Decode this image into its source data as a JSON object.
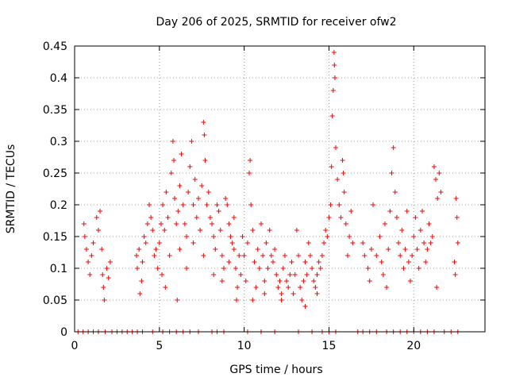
{
  "chart_data": {
    "type": "scatter",
    "title": "Day 206 of 2025, SRMTID for receiver ofw2",
    "xlabel": "GPS time / hours",
    "ylabel": "SRMTID / TECUs",
    "xlim": [
      0,
      24.2
    ],
    "ylim": [
      0,
      0.45
    ],
    "x_ticks": [
      0,
      5,
      10,
      15,
      20
    ],
    "y_ticks": [
      0,
      0.05,
      0.1,
      0.15,
      0.2,
      0.25,
      0.3,
      0.35,
      0.4,
      0.45
    ],
    "x_tick_labels": [
      "0",
      "5",
      "10",
      "15",
      "20"
    ],
    "y_tick_labels": [
      "0",
      "0.05",
      "0.1",
      "0.15",
      "0.2",
      "0.25",
      "0.3",
      "0.35",
      "0.4",
      "0.45"
    ],
    "grid": true,
    "marker": "+",
    "color": "#ff0000",
    "series": [
      {
        "name": "SRMTID",
        "points": [
          [
            0.2,
            0
          ],
          [
            0.5,
            0
          ],
          [
            0.8,
            0
          ],
          [
            1.1,
            0
          ],
          [
            1.4,
            0
          ],
          [
            1.8,
            0
          ],
          [
            2.2,
            0
          ],
          [
            2.5,
            0
          ],
          [
            2.8,
            0
          ],
          [
            3.1,
            0
          ],
          [
            3.4,
            0
          ],
          [
            3.7,
            0
          ],
          [
            4.0,
            0
          ],
          [
            4.6,
            0
          ],
          [
            5.2,
            0
          ],
          [
            5.6,
            0
          ],
          [
            6.0,
            0
          ],
          [
            6.4,
            0
          ],
          [
            6.8,
            0
          ],
          [
            7.3,
            0
          ],
          [
            8.1,
            0
          ],
          [
            8.4,
            0
          ],
          [
            8.8,
            0
          ],
          [
            10.2,
            0
          ],
          [
            11.0,
            0
          ],
          [
            11.8,
            0
          ],
          [
            13.2,
            0
          ],
          [
            14.0,
            0
          ],
          [
            14.6,
            0
          ],
          [
            15.0,
            0
          ],
          [
            15.4,
            0
          ],
          [
            16.7,
            0
          ],
          [
            17.0,
            0
          ],
          [
            17.4,
            0
          ],
          [
            17.8,
            0
          ],
          [
            18.4,
            0
          ],
          [
            18.8,
            0
          ],
          [
            19.2,
            0
          ],
          [
            19.6,
            0
          ],
          [
            20.0,
            0
          ],
          [
            20.4,
            0
          ],
          [
            20.8,
            0
          ],
          [
            21.2,
            0
          ],
          [
            21.8,
            0
          ],
          [
            22.2,
            0
          ],
          [
            22.6,
            0
          ],
          [
            0.55,
            0.17
          ],
          [
            0.6,
            0.15
          ],
          [
            0.7,
            0.13
          ],
          [
            0.8,
            0.11
          ],
          [
            0.9,
            0.09
          ],
          [
            1.0,
            0.12
          ],
          [
            1.1,
            0.14
          ],
          [
            1.3,
            0.18
          ],
          [
            1.4,
            0.16
          ],
          [
            1.5,
            0.19
          ],
          [
            1.6,
            0.13
          ],
          [
            1.65,
            0.09
          ],
          [
            1.7,
            0.07
          ],
          [
            1.75,
            0.05
          ],
          [
            1.9,
            0.1
          ],
          [
            2.0,
            0.085
          ],
          [
            2.1,
            0.11
          ],
          [
            3.65,
            0.12
          ],
          [
            3.7,
            0.1
          ],
          [
            3.8,
            0.13
          ],
          [
            3.85,
            0.06
          ],
          [
            3.95,
            0.08
          ],
          [
            4.0,
            0.11
          ],
          [
            4.1,
            0.15
          ],
          [
            4.2,
            0.14
          ],
          [
            4.3,
            0.17
          ],
          [
            4.4,
            0.2
          ],
          [
            4.5,
            0.18
          ],
          [
            4.6,
            0.16
          ],
          [
            4.7,
            0.12
          ],
          [
            4.8,
            0.13
          ],
          [
            4.9,
            0.1
          ],
          [
            5.0,
            0.14
          ],
          [
            5.1,
            0.17
          ],
          [
            5.15,
            0.09
          ],
          [
            5.2,
            0.2
          ],
          [
            5.3,
            0.16
          ],
          [
            5.35,
            0.07
          ],
          [
            5.4,
            0.22
          ],
          [
            5.5,
            0.18
          ],
          [
            5.6,
            0.12
          ],
          [
            5.7,
            0.25
          ],
          [
            5.8,
            0.3
          ],
          [
            5.85,
            0.27
          ],
          [
            5.9,
            0.21
          ],
          [
            6.0,
            0.17
          ],
          [
            6.05,
            0.05
          ],
          [
            6.1,
            0.19
          ],
          [
            6.2,
            0.23
          ],
          [
            6.3,
            0.28
          ],
          [
            6.4,
            0.2
          ],
          [
            6.5,
            0.17
          ],
          [
            6.6,
            0.15
          ],
          [
            6.7,
            0.22
          ],
          [
            6.8,
            0.26
          ],
          [
            6.9,
            0.3
          ],
          [
            7.0,
            0.2
          ],
          [
            7.1,
            0.24
          ],
          [
            7.2,
            0.18
          ],
          [
            7.3,
            0.21
          ],
          [
            7.4,
            0.16
          ],
          [
            7.5,
            0.23
          ],
          [
            7.6,
            0.33
          ],
          [
            7.65,
            0.31
          ],
          [
            7.7,
            0.27
          ],
          [
            7.8,
            0.2
          ],
          [
            7.9,
            0.22
          ],
          [
            8.0,
            0.18
          ],
          [
            8.1,
            0.17
          ],
          [
            8.2,
            0.15
          ],
          [
            8.3,
            0.13
          ],
          [
            8.4,
            0.2
          ],
          [
            8.5,
            0.19
          ],
          [
            8.6,
            0.16
          ],
          [
            8.7,
            0.12
          ],
          [
            8.8,
            0.1
          ],
          [
            8.9,
            0.21
          ],
          [
            9.0,
            0.2
          ],
          [
            9.1,
            0.17
          ],
          [
            9.2,
            0.15
          ],
          [
            9.3,
            0.14
          ],
          [
            9.4,
            0.13
          ],
          [
            9.5,
            0.1
          ],
          [
            9.6,
            0.07
          ],
          [
            6.2,
            0.13
          ],
          [
            6.6,
            0.1
          ],
          [
            7.0,
            0.14
          ],
          [
            7.6,
            0.12
          ],
          [
            8.2,
            0.09
          ],
          [
            8.7,
            0.08
          ],
          [
            9.1,
            0.11
          ],
          [
            9.4,
            0.18
          ],
          [
            9.55,
            0.05
          ],
          [
            9.7,
            0.12
          ],
          [
            9.8,
            0.09
          ],
          [
            9.9,
            0.15
          ],
          [
            10.0,
            0.12
          ],
          [
            10.1,
            0.08
          ],
          [
            10.2,
            0.14
          ],
          [
            10.3,
            0.25
          ],
          [
            10.35,
            0.27
          ],
          [
            10.4,
            0.2
          ],
          [
            10.5,
            0.16
          ],
          [
            10.6,
            0.11
          ],
          [
            10.7,
            0.07
          ],
          [
            10.8,
            0.13
          ],
          [
            10.9,
            0.1
          ],
          [
            11.0,
            0.17
          ],
          [
            11.1,
            0.12
          ],
          [
            11.2,
            0.08
          ],
          [
            11.3,
            0.14
          ],
          [
            11.4,
            0.1
          ],
          [
            11.5,
            0.16
          ],
          [
            11.6,
            0.12
          ],
          [
            11.7,
            0.11
          ],
          [
            11.8,
            0.13
          ],
          [
            11.9,
            0.09
          ],
          [
            12.0,
            0.07
          ],
          [
            12.1,
            0.08
          ],
          [
            12.2,
            0.06
          ],
          [
            12.3,
            0.1
          ],
          [
            12.4,
            0.12
          ],
          [
            12.5,
            0.08
          ],
          [
            12.6,
            0.07
          ],
          [
            12.7,
            0.09
          ],
          [
            12.8,
            0.11
          ],
          [
            12.9,
            0.06
          ],
          [
            13.0,
            0.09
          ],
          [
            13.1,
            0.16
          ],
          [
            13.2,
            0.12
          ],
          [
            13.3,
            0.07
          ],
          [
            13.4,
            0.05
          ],
          [
            13.5,
            0.08
          ],
          [
            13.6,
            0.11
          ],
          [
            13.7,
            0.09
          ],
          [
            13.8,
            0.14
          ],
          [
            13.9,
            0.12
          ],
          [
            14.0,
            0.1
          ],
          [
            14.1,
            0.08
          ],
          [
            14.2,
            0.07
          ],
          [
            14.3,
            0.09
          ],
          [
            14.4,
            0.11
          ],
          [
            14.5,
            0.1
          ],
          [
            14.6,
            0.12
          ],
          [
            14.7,
            0.14
          ],
          [
            14.8,
            0.16
          ],
          [
            14.9,
            0.15
          ],
          [
            15.0,
            0.18
          ],
          [
            15.1,
            0.2
          ],
          [
            15.15,
            0.26
          ],
          [
            15.2,
            0.34
          ],
          [
            15.25,
            0.38
          ],
          [
            15.3,
            0.44
          ],
          [
            15.32,
            0.42
          ],
          [
            15.35,
            0.4
          ],
          [
            15.4,
            0.29
          ],
          [
            15.5,
            0.24
          ],
          [
            15.6,
            0.2
          ],
          [
            15.7,
            0.18
          ],
          [
            15.8,
            0.27
          ],
          [
            15.85,
            0.25
          ],
          [
            15.9,
            0.22
          ],
          [
            16.0,
            0.17
          ],
          [
            16.1,
            0.12
          ],
          [
            16.2,
            0.15
          ],
          [
            16.3,
            0.19
          ],
          [
            16.4,
            0.14
          ],
          [
            10.5,
            0.05
          ],
          [
            11.2,
            0.06
          ],
          [
            12.2,
            0.05
          ],
          [
            13.6,
            0.04
          ],
          [
            14.3,
            0.06
          ],
          [
            17.0,
            0.14
          ],
          [
            17.1,
            0.12
          ],
          [
            17.3,
            0.1
          ],
          [
            17.4,
            0.08
          ],
          [
            17.5,
            0.13
          ],
          [
            17.6,
            0.2
          ],
          [
            17.8,
            0.12
          ],
          [
            18.0,
            0.15
          ],
          [
            18.1,
            0.11
          ],
          [
            18.2,
            0.09
          ],
          [
            18.3,
            0.17
          ],
          [
            18.4,
            0.07
          ],
          [
            18.5,
            0.13
          ],
          [
            18.6,
            0.19
          ],
          [
            18.7,
            0.25
          ],
          [
            18.8,
            0.29
          ],
          [
            18.9,
            0.22
          ],
          [
            19.0,
            0.18
          ],
          [
            19.1,
            0.14
          ],
          [
            19.2,
            0.12
          ],
          [
            19.3,
            0.16
          ],
          [
            19.4,
            0.1
          ],
          [
            19.5,
            0.13
          ],
          [
            19.6,
            0.19
          ],
          [
            19.7,
            0.11
          ],
          [
            19.8,
            0.08
          ],
          [
            19.9,
            0.12
          ],
          [
            20.0,
            0.15
          ],
          [
            20.1,
            0.18
          ],
          [
            20.2,
            0.13
          ],
          [
            20.3,
            0.1
          ],
          [
            20.4,
            0.16
          ],
          [
            20.5,
            0.19
          ],
          [
            20.6,
            0.14
          ],
          [
            20.7,
            0.11
          ],
          [
            20.8,
            0.13
          ],
          [
            20.9,
            0.17
          ],
          [
            21.0,
            0.14
          ],
          [
            21.1,
            0.15
          ],
          [
            21.2,
            0.26
          ],
          [
            21.3,
            0.24
          ],
          [
            21.4,
            0.21
          ],
          [
            21.5,
            0.25
          ],
          [
            21.6,
            0.22
          ],
          [
            21.35,
            0.07
          ],
          [
            22.4,
            0.11
          ],
          [
            22.45,
            0.09
          ],
          [
            22.5,
            0.21
          ],
          [
            22.55,
            0.18
          ],
          [
            22.6,
            0.14
          ]
        ]
      }
    ]
  }
}
